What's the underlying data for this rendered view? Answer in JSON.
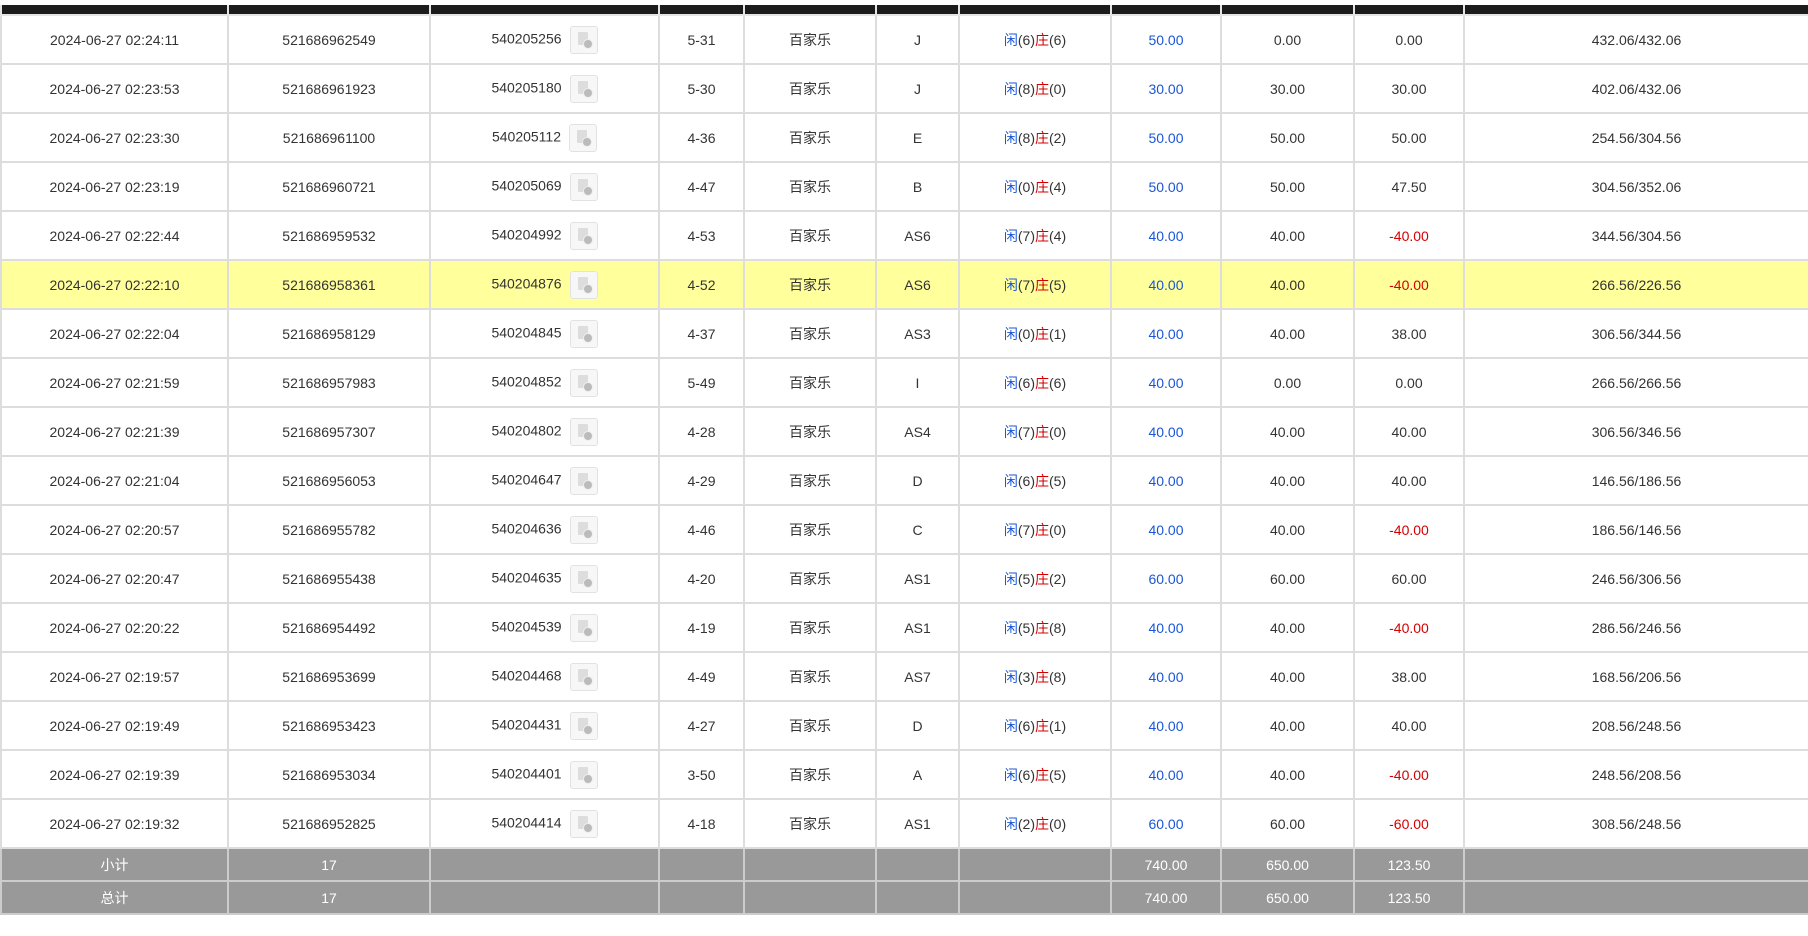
{
  "colors": {
    "header": "#1c1c1c",
    "highlight": "#ffff9c",
    "summary": "#999999",
    "blue": "#1a56d6",
    "red": "#d40000"
  },
  "player_label": "闲",
  "banker_label": "庄",
  "rows": [
    {
      "time": "2024-06-27 02:24:11",
      "order": "521686962549",
      "round": "540205256",
      "shoe": "5-31",
      "game": "百家乐",
      "table": "J",
      "p": "(6)",
      "b": "(6)",
      "bet": "50.00",
      "valid": "0.00",
      "win": "0.00",
      "win_neg": false,
      "balance": "432.06/432.06"
    },
    {
      "time": "2024-06-27 02:23:53",
      "order": "521686961923",
      "round": "540205180",
      "shoe": "5-30",
      "game": "百家乐",
      "table": "J",
      "p": "(8)",
      "b": "(0)",
      "bet": "30.00",
      "valid": "30.00",
      "win": "30.00",
      "win_neg": false,
      "balance": "402.06/432.06"
    },
    {
      "time": "2024-06-27 02:23:30",
      "order": "521686961100",
      "round": "540205112",
      "shoe": "4-36",
      "game": "百家乐",
      "table": "E",
      "p": "(8)",
      "b": "(2)",
      "bet": "50.00",
      "valid": "50.00",
      "win": "50.00",
      "win_neg": false,
      "balance": "254.56/304.56"
    },
    {
      "time": "2024-06-27 02:23:19",
      "order": "521686960721",
      "round": "540205069",
      "shoe": "4-47",
      "game": "百家乐",
      "table": "B",
      "p": "(0)",
      "b": "(4)",
      "bet": "50.00",
      "valid": "50.00",
      "win": "47.50",
      "win_neg": false,
      "balance": "304.56/352.06"
    },
    {
      "time": "2024-06-27 02:22:44",
      "order": "521686959532",
      "round": "540204992",
      "shoe": "4-53",
      "game": "百家乐",
      "table": "AS6",
      "p": "(7)",
      "b": "(4)",
      "bet": "40.00",
      "valid": "40.00",
      "win": "-40.00",
      "win_neg": true,
      "balance": "344.56/304.56"
    },
    {
      "time": "2024-06-27 02:22:10",
      "order": "521686958361",
      "round": "540204876",
      "shoe": "4-52",
      "game": "百家乐",
      "table": "AS6",
      "p": "(7)",
      "b": "(5)",
      "bet": "40.00",
      "valid": "40.00",
      "win": "-40.00",
      "win_neg": true,
      "balance": "266.56/226.56",
      "highlight": true
    },
    {
      "time": "2024-06-27 02:22:04",
      "order": "521686958129",
      "round": "540204845",
      "shoe": "4-37",
      "game": "百家乐",
      "table": "AS3",
      "p": "(0)",
      "b": "(1)",
      "bet": "40.00",
      "valid": "40.00",
      "win": "38.00",
      "win_neg": false,
      "balance": "306.56/344.56"
    },
    {
      "time": "2024-06-27 02:21:59",
      "order": "521686957983",
      "round": "540204852",
      "shoe": "5-49",
      "game": "百家乐",
      "table": "I",
      "p": "(6)",
      "b": "(6)",
      "bet": "40.00",
      "valid": "0.00",
      "win": "0.00",
      "win_neg": false,
      "balance": "266.56/266.56"
    },
    {
      "time": "2024-06-27 02:21:39",
      "order": "521686957307",
      "round": "540204802",
      "shoe": "4-28",
      "game": "百家乐",
      "table": "AS4",
      "p": "(7)",
      "b": "(0)",
      "bet": "40.00",
      "valid": "40.00",
      "win": "40.00",
      "win_neg": false,
      "balance": "306.56/346.56"
    },
    {
      "time": "2024-06-27 02:21:04",
      "order": "521686956053",
      "round": "540204647",
      "shoe": "4-29",
      "game": "百家乐",
      "table": "D",
      "p": "(6)",
      "b": "(5)",
      "bet": "40.00",
      "valid": "40.00",
      "win": "40.00",
      "win_neg": false,
      "balance": "146.56/186.56"
    },
    {
      "time": "2024-06-27 02:20:57",
      "order": "521686955782",
      "round": "540204636",
      "shoe": "4-46",
      "game": "百家乐",
      "table": "C",
      "p": "(7)",
      "b": "(0)",
      "bet": "40.00",
      "valid": "40.00",
      "win": "-40.00",
      "win_neg": true,
      "balance": "186.56/146.56"
    },
    {
      "time": "2024-06-27 02:20:47",
      "order": "521686955438",
      "round": "540204635",
      "shoe": "4-20",
      "game": "百家乐",
      "table": "AS1",
      "p": "(5)",
      "b": "(2)",
      "bet": "60.00",
      "valid": "60.00",
      "win": "60.00",
      "win_neg": false,
      "balance": "246.56/306.56"
    },
    {
      "time": "2024-06-27 02:20:22",
      "order": "521686954492",
      "round": "540204539",
      "shoe": "4-19",
      "game": "百家乐",
      "table": "AS1",
      "p": "(5)",
      "b": "(8)",
      "bet": "40.00",
      "valid": "40.00",
      "win": "-40.00",
      "win_neg": true,
      "balance": "286.56/246.56"
    },
    {
      "time": "2024-06-27 02:19:57",
      "order": "521686953699",
      "round": "540204468",
      "shoe": "4-49",
      "game": "百家乐",
      "table": "AS7",
      "p": "(3)",
      "b": "(8)",
      "bet": "40.00",
      "valid": "40.00",
      "win": "38.00",
      "win_neg": false,
      "balance": "168.56/206.56"
    },
    {
      "time": "2024-06-27 02:19:49",
      "order": "521686953423",
      "round": "540204431",
      "shoe": "4-27",
      "game": "百家乐",
      "table": "D",
      "p": "(6)",
      "b": "(1)",
      "bet": "40.00",
      "valid": "40.00",
      "win": "40.00",
      "win_neg": false,
      "balance": "208.56/248.56"
    },
    {
      "time": "2024-06-27 02:19:39",
      "order": "521686953034",
      "round": "540204401",
      "shoe": "3-50",
      "game": "百家乐",
      "table": "A",
      "p": "(6)",
      "b": "(5)",
      "bet": "40.00",
      "valid": "40.00",
      "win": "-40.00",
      "win_neg": true,
      "balance": "248.56/208.56"
    },
    {
      "time": "2024-06-27 02:19:32",
      "order": "521686952825",
      "round": "540204414",
      "shoe": "4-18",
      "game": "百家乐",
      "table": "AS1",
      "p": "(2)",
      "b": "(0)",
      "bet": "60.00",
      "valid": "60.00",
      "win": "-60.00",
      "win_neg": true,
      "balance": "308.56/248.56"
    }
  ],
  "subtotal": {
    "label": "小计",
    "count": "17",
    "bet": "740.00",
    "valid": "650.00",
    "win": "123.50"
  },
  "total": {
    "label": "总计",
    "count": "17",
    "bet": "740.00",
    "valid": "650.00",
    "win": "123.50"
  }
}
